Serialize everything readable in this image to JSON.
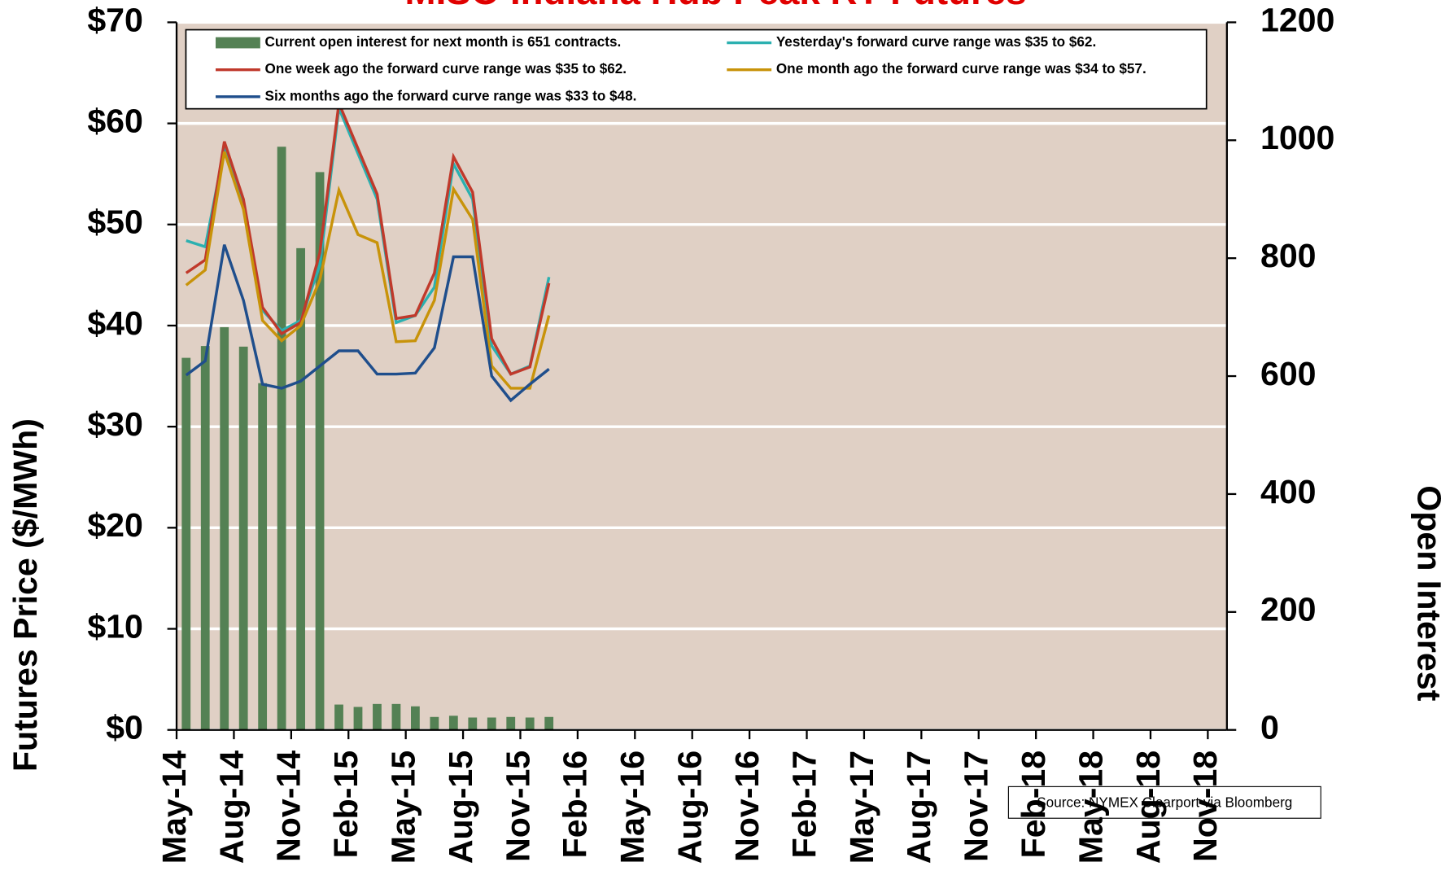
{
  "chart_data": {
    "type": "bar",
    "title": "MISO Indiana Hub Peak RT Futures",
    "y_label": "Futures Price ($/MWh)",
    "y2_label": "Open Interest",
    "source": "Source: NYMEX Clearport via Bloomberg",
    "categories": [
      "May-14",
      null,
      null,
      "Aug-14",
      null,
      null,
      "Nov-14",
      null,
      null,
      "Feb-15",
      null,
      null,
      "May-15",
      null,
      null,
      "Aug-15",
      null,
      null,
      "Nov-15",
      null,
      null,
      "Feb-16",
      null,
      null,
      "May-16",
      null,
      null,
      "Aug-16",
      null,
      null,
      "Nov-16",
      null,
      null,
      "Feb-17",
      null,
      null,
      "May-17",
      null,
      null,
      "Aug-17",
      null,
      null,
      "Nov-17",
      null,
      null,
      "Feb-18",
      null,
      null,
      "May-18",
      null,
      null,
      "Aug-18",
      null,
      null,
      "Nov-18"
    ],
    "ylim": [
      0,
      70
    ],
    "yticks": [
      {
        "value": 0,
        "label": "$0"
      },
      {
        "value": 10,
        "label": "$10"
      },
      {
        "value": 20,
        "label": "$20"
      },
      {
        "value": 30,
        "label": "$30"
      },
      {
        "value": 40,
        "label": "$40"
      },
      {
        "value": 50,
        "label": "$50"
      },
      {
        "value": 60,
        "label": "$60"
      },
      {
        "value": 70,
        "label": "$70"
      }
    ],
    "y2lim": [
      0,
      1200
    ],
    "y2ticks": [
      0,
      200,
      400,
      600,
      800,
      1000,
      1200
    ],
    "grid": true,
    "series": [
      {
        "name": "Current open interest for next month is 651 contracts.",
        "type": "bar",
        "axis": "y2",
        "color": "#548154",
        "values": [
          631,
          651,
          683,
          650,
          588,
          989,
          817,
          946,
          43,
          39,
          44,
          44,
          40,
          22,
          24,
          21,
          21,
          22,
          21,
          22,
          null,
          null,
          null,
          null,
          null,
          null,
          null,
          null,
          null,
          null,
          null,
          null,
          null,
          null,
          null,
          null,
          null,
          null,
          null,
          null,
          null,
          null,
          null,
          null,
          null,
          null,
          null,
          null,
          null,
          null,
          null,
          null,
          null,
          null,
          null
        ]
      },
      {
        "name": "Yesterday's forward curve range was $35 to $62.",
        "type": "line",
        "color": "#2bb0b0",
        "values": [
          48.4,
          47.8,
          57.5,
          52,
          41.5,
          39.5,
          40.5,
          46,
          61.5,
          57,
          52.5,
          40.3,
          41,
          43.8,
          56,
          52.5,
          38,
          35.2,
          36,
          44.8,
          null,
          null,
          null,
          null,
          null,
          null,
          null,
          null,
          null,
          null,
          null,
          null,
          null,
          null,
          null,
          null,
          null,
          null,
          null,
          null,
          null,
          null,
          null,
          null,
          null,
          null,
          null,
          null,
          null,
          null,
          null,
          null,
          null,
          null,
          null
        ]
      },
      {
        "name": "One week ago the forward curve range was $35 to $62.",
        "type": "line",
        "color": "#c0392b",
        "values": [
          45.2,
          46.5,
          58.2,
          52.5,
          41.8,
          39.2,
          40.3,
          47.2,
          62,
          57.5,
          53,
          40.7,
          41,
          45.2,
          56.7,
          53.2,
          38.7,
          35.2,
          35.9,
          44.2,
          null,
          null,
          null,
          null,
          null,
          null,
          null,
          null,
          null,
          null,
          null,
          null,
          null,
          null,
          null,
          null,
          null,
          null,
          null,
          null,
          null,
          null,
          null,
          null,
          null,
          null,
          null,
          null,
          null,
          null,
          null,
          null,
          null,
          null,
          null
        ]
      },
      {
        "name": "One month ago the forward curve range was $34 to $57.",
        "type": "line",
        "color": "#c8930a",
        "values": [
          44,
          45.5,
          57.2,
          51.5,
          40.5,
          38.5,
          40,
          44.5,
          53.4,
          49,
          48.2,
          38.4,
          38.5,
          42.5,
          53.5,
          50.5,
          36,
          33.8,
          33.8,
          41,
          null,
          null,
          null,
          null,
          null,
          null,
          null,
          null,
          null,
          null,
          null,
          null,
          null,
          null,
          null,
          null,
          null,
          null,
          null,
          null,
          null,
          null,
          null,
          null,
          null,
          null,
          null,
          null,
          null,
          null,
          null,
          null,
          null,
          null,
          null
        ]
      },
      {
        "name": "Six months ago the forward curve range was $33 to $48.",
        "type": "line",
        "color": "#1f4e8c",
        "values": [
          35.1,
          36.5,
          48,
          42.5,
          34.2,
          33.8,
          34.5,
          36,
          37.5,
          37.5,
          35.2,
          35.2,
          35.3,
          37.8,
          46.8,
          46.8,
          35,
          32.6,
          34.2,
          35.7,
          null,
          null,
          null,
          null,
          null,
          null,
          null,
          null,
          null,
          null,
          null,
          null,
          null,
          null,
          null,
          null,
          null,
          null,
          null,
          null,
          null,
          null,
          null,
          null,
          null,
          null,
          null,
          null,
          null,
          null,
          null,
          null,
          null,
          null,
          null
        ]
      }
    ]
  }
}
